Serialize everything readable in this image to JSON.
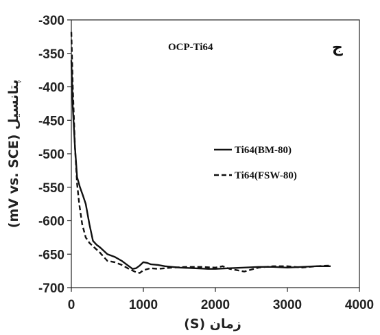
{
  "chart_data": {
    "type": "line",
    "xlabel": "زمان (S)",
    "ylabel": "پتانسیل (mV vs. SCE)",
    "xlim": [
      0,
      4000
    ],
    "ylim": [
      -700,
      -300
    ],
    "xticks": [
      "0",
      "1000",
      "2000",
      "3000",
      "4000"
    ],
    "yticks": [
      "-300",
      "-350",
      "-400",
      "-450",
      "-500",
      "-550",
      "-600",
      "-650",
      "-700"
    ],
    "annotation": "OCP-Ti64",
    "panel_label": "ج",
    "legend": "right-middle",
    "grid": false,
    "series": [
      {
        "name": "Ti64(BM-80)",
        "style": "solid",
        "x": [
          0,
          20,
          50,
          80,
          120,
          160,
          200,
          250,
          300,
          350,
          400,
          500,
          600,
          700,
          800,
          850,
          900,
          950,
          1000,
          1050,
          1100,
          1200,
          1300,
          1500,
          1700,
          1900,
          2000,
          2200,
          2400,
          2600,
          2800,
          3000,
          3200,
          3400,
          3600
        ],
        "y": [
          -360,
          -430,
          -490,
          -535,
          -550,
          -562,
          -575,
          -605,
          -630,
          -636,
          -640,
          -650,
          -654,
          -660,
          -668,
          -672,
          -671,
          -667,
          -662,
          -663,
          -665,
          -666,
          -668,
          -670,
          -671,
          -672,
          -672,
          -671,
          -670,
          -669,
          -669,
          -670,
          -669,
          -668,
          -668
        ]
      },
      {
        "name": "Ti64(FSW-80)",
        "style": "dashed",
        "x": [
          0,
          20,
          50,
          80,
          110,
          150,
          200,
          250,
          300,
          400,
          500,
          600,
          700,
          800,
          900,
          950,
          1000,
          1100,
          1200,
          1400,
          1600,
          1800,
          2000,
          2100,
          2200,
          2300,
          2400,
          2600,
          2800,
          3000,
          3200,
          3400,
          3600
        ],
        "y": [
          -318,
          -400,
          -490,
          -545,
          -575,
          -605,
          -625,
          -633,
          -638,
          -648,
          -660,
          -662,
          -666,
          -672,
          -677,
          -678,
          -674,
          -671,
          -672,
          -670,
          -669,
          -669,
          -670,
          -668,
          -672,
          -674,
          -676,
          -670,
          -668,
          -668,
          -670,
          -668,
          -667
        ]
      }
    ]
  }
}
